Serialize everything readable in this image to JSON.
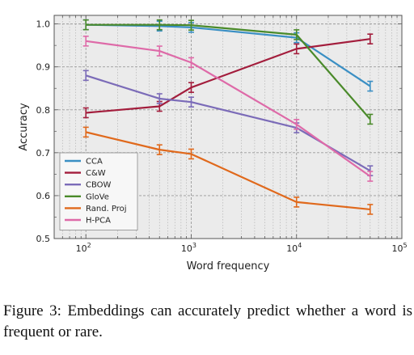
{
  "chart_data": {
    "type": "line",
    "title": "",
    "xlabel": "Word frequency",
    "ylabel": "Accuracy",
    "xscale": "log",
    "xlim": [
      50,
      100000
    ],
    "ylim": [
      0.5,
      1.02
    ],
    "x_ticks": [
      100,
      1000,
      10000,
      100000
    ],
    "x_tick_labels": [
      {
        "base": "10",
        "exp": "2"
      },
      {
        "base": "10",
        "exp": "3"
      },
      {
        "base": "10",
        "exp": "4"
      },
      {
        "base": "10",
        "exp": "5"
      }
    ],
    "y_ticks": [
      0.5,
      0.6,
      0.7,
      0.8,
      0.9,
      1.0
    ],
    "y_tick_labels": [
      "0.5",
      "0.6",
      "0.7",
      "0.8",
      "0.9",
      "1.0"
    ],
    "grid": true,
    "legend_position": "bottom-left",
    "x": [
      100,
      500,
      1000,
      10000,
      50000
    ],
    "series": [
      {
        "name": "CCA",
        "color": "#3a8fc4",
        "values": [
          0.998,
          0.995,
          0.992,
          0.968,
          0.855
        ]
      },
      {
        "name": "C&W",
        "color": "#a31d3c",
        "values": [
          0.793,
          0.808,
          0.852,
          0.942,
          0.965
        ]
      },
      {
        "name": "CBOW",
        "color": "#7b6bb8",
        "values": [
          0.88,
          0.826,
          0.818,
          0.758,
          0.658
        ]
      },
      {
        "name": "GloVe",
        "color": "#4a8a2a",
        "values": [
          0.998,
          0.998,
          0.997,
          0.975,
          0.778
        ]
      },
      {
        "name": "Rand. Proj",
        "color": "#e0691c",
        "values": [
          0.748,
          0.707,
          0.697,
          0.585,
          0.568
        ]
      },
      {
        "name": "H-PCA",
        "color": "#de6aa8",
        "values": [
          0.96,
          0.937,
          0.91,
          0.766,
          0.645
        ]
      }
    ]
  },
  "caption": {
    "text": "Figure 3:  Embeddings can accurately predict whether a word is frequent or rare."
  }
}
